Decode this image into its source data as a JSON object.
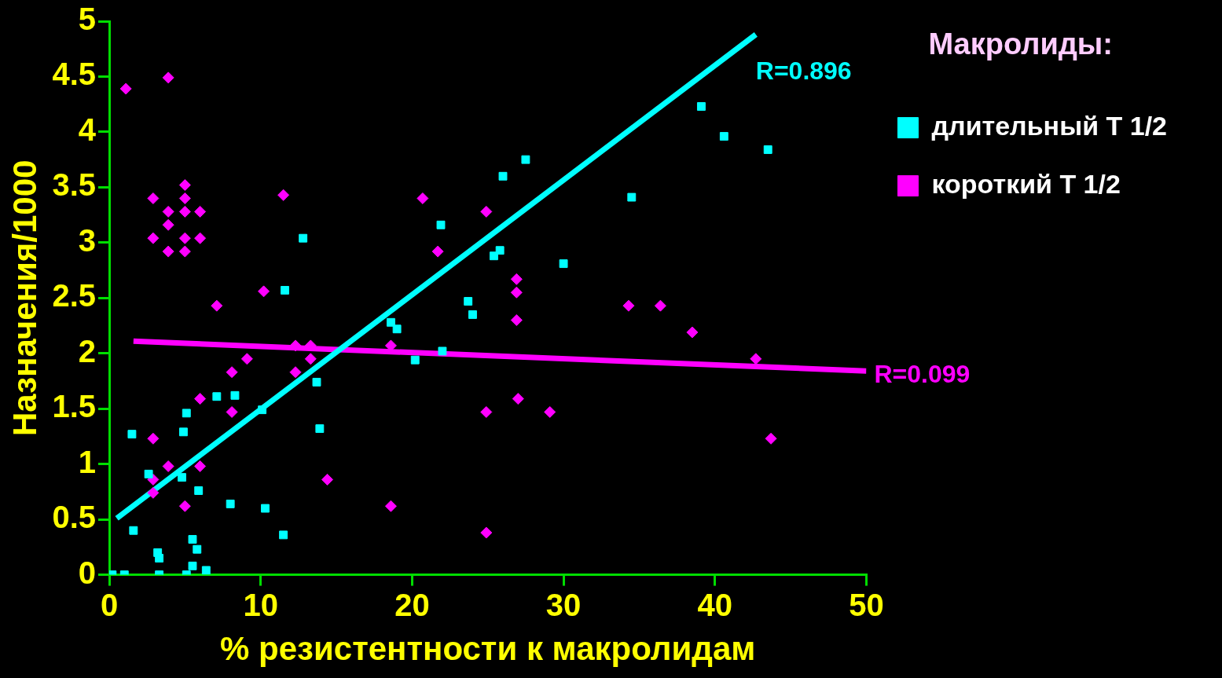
{
  "chart_data": {
    "type": "scatter",
    "xlabel": "% резистентности к макролидам",
    "ylabel": "Назначения/1000",
    "legend_title": "Макролиды:",
    "legend": "top right",
    "grid": false,
    "xlim": [
      0,
      50
    ],
    "xticks": [
      0,
      10,
      20,
      30,
      40,
      50
    ],
    "ylim": [
      0,
      5
    ],
    "yticks": [
      0,
      0.5,
      1,
      1.5,
      2,
      2.5,
      3,
      3.5,
      4,
      4.5,
      5
    ],
    "annotations": [
      "R=0.896",
      "R=0.099"
    ],
    "series": [
      {
        "name": "длительный Т 1/2",
        "color": "#00ffff",
        "marker": "square",
        "x": [
          12.8,
          11.6,
          18.6,
          7.1,
          8.3,
          5.1,
          10.1,
          1.5,
          4.9,
          13.7,
          13.9,
          2.6,
          4.8,
          5.9,
          8.0,
          10.3,
          1.6,
          5.5,
          11.5,
          3.2,
          3.3,
          5.8,
          5.5,
          6.4,
          0.2,
          1.0,
          3.3,
          5.1,
          39.1,
          40.6,
          43.5,
          27.5,
          26.0,
          34.5,
          21.9,
          25.8,
          25.4,
          30.0,
          23.7,
          24.0,
          19.0,
          20.2,
          22.0
        ],
        "values": [
          3.04,
          2.57,
          2.28,
          1.61,
          1.62,
          1.46,
          1.49,
          1.27,
          1.29,
          1.74,
          1.32,
          0.91,
          0.88,
          0.76,
          0.64,
          0.6,
          0.4,
          0.32,
          0.36,
          0.2,
          0.15,
          0.23,
          0.08,
          0.04,
          0,
          0,
          0,
          0,
          4.23,
          3.96,
          3.84,
          3.75,
          3.6,
          3.41,
          3.16,
          2.93,
          2.88,
          2.81,
          2.47,
          2.35,
          2.22,
          1.94,
          2.02
        ]
      },
      {
        "name": "короткий Т 1/2",
        "color": "#ff00ff",
        "marker": "diamond",
        "x": [
          1.1,
          3.9,
          5.0,
          2.9,
          5.0,
          3.9,
          5.0,
          6.0,
          3.9,
          2.9,
          5.0,
          6.0,
          3.9,
          5.0,
          11.5,
          10.2,
          7.1,
          12.3,
          13.3,
          9.1,
          13.3,
          8.1,
          12.3,
          6.0,
          8.1,
          2.9,
          3.9,
          6.0,
          2.9,
          2.9,
          5.0,
          14.4,
          18.6,
          18.6,
          20.7,
          24.9,
          21.7,
          26.9,
          26.9,
          26.9,
          34.3,
          36.4,
          38.5,
          42.7,
          24.9,
          27.0,
          29.1,
          43.7,
          24.9
        ],
        "values": [
          4.39,
          4.49,
          3.52,
          3.4,
          3.4,
          3.28,
          3.28,
          3.28,
          3.16,
          3.04,
          3.04,
          3.04,
          2.92,
          2.92,
          3.43,
          2.56,
          2.43,
          2.07,
          2.07,
          1.95,
          1.95,
          1.83,
          1.83,
          1.59,
          1.47,
          1.23,
          0.98,
          0.98,
          0.86,
          0.74,
          0.62,
          0.86,
          0.62,
          2.07,
          3.4,
          3.28,
          2.92,
          2.67,
          2.55,
          2.3,
          2.43,
          2.43,
          2.19,
          1.95,
          1.47,
          1.59,
          1.47,
          1.23,
          0.38
        ]
      },
      {
        "type": "line",
        "color": "#00ffff",
        "x": [
          0.5,
          42.7
        ],
        "values": [
          0.51,
          4.88
        ]
      },
      {
        "type": "line",
        "color": "#ff00ff",
        "x": [
          1.6,
          50
        ],
        "values": [
          2.11,
          1.84
        ]
      }
    ]
  }
}
